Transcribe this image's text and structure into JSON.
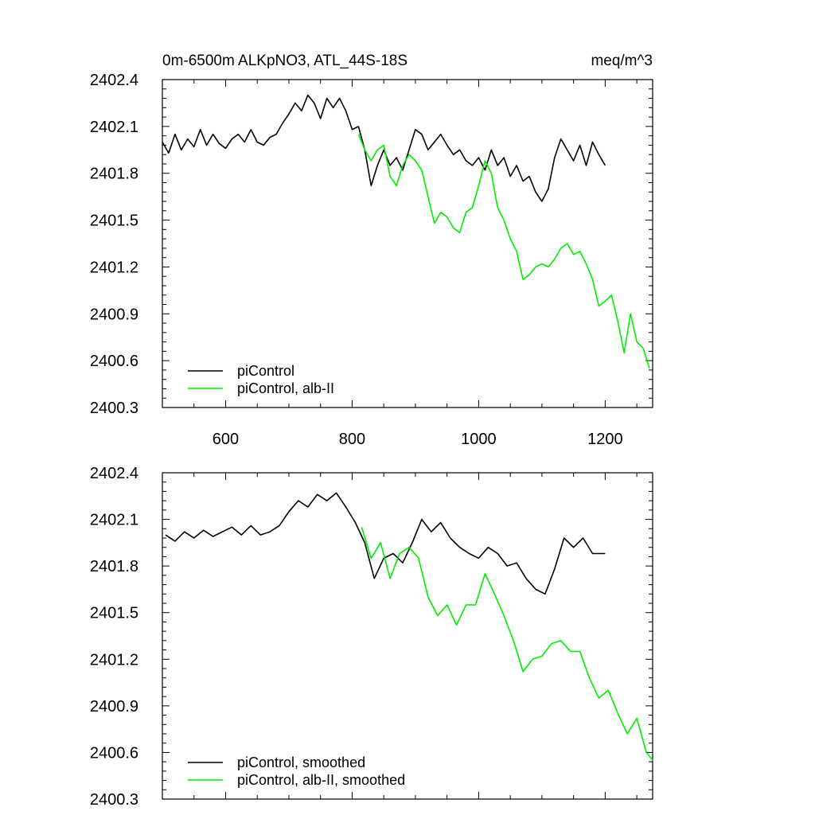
{
  "figure": {
    "title_left": "0m-6500m ALKpNO3, ATL_44S-18S",
    "title_right": "meq/m^3"
  },
  "colors": {
    "picontrol": "#000000",
    "alb_ii": "#00ee00",
    "axes": "#000000",
    "background": "#ffffff"
  },
  "chart_data": [
    {
      "type": "line",
      "xlim": [
        500,
        1275
      ],
      "ylim": [
        2400.3,
        2402.4
      ],
      "x_ticks": [
        600,
        800,
        1000,
        1200
      ],
      "x_tick_labels": [
        "600",
        "800",
        "1000",
        "1200"
      ],
      "y_ticks": [
        2400.3,
        2400.6,
        2400.9,
        2401.2,
        2401.5,
        2401.8,
        2402.1,
        2402.4
      ],
      "y_tick_labels": [
        "2400.3",
        "2400.6",
        "2400.9",
        "2401.2",
        "2401.5",
        "2401.8",
        "2402.1",
        "2402.4"
      ],
      "grid": false,
      "legend_position": "bottom-left",
      "series": [
        {
          "name": "piControl",
          "color": "#000000",
          "x": [
            500,
            510,
            520,
            530,
            540,
            550,
            560,
            570,
            580,
            590,
            600,
            610,
            620,
            630,
            640,
            650,
            660,
            670,
            680,
            690,
            700,
            710,
            720,
            730,
            740,
            750,
            760,
            770,
            780,
            790,
            800,
            810,
            820,
            830,
            840,
            850,
            860,
            870,
            880,
            890,
            900,
            910,
            920,
            930,
            940,
            950,
            960,
            970,
            980,
            990,
            1000,
            1010,
            1020,
            1030,
            1040,
            1050,
            1060,
            1070,
            1080,
            1090,
            1100,
            1110,
            1120,
            1130,
            1140,
            1150,
            1160,
            1170,
            1180,
            1190,
            1200
          ],
          "y": [
            2402.0,
            2401.93,
            2402.05,
            2401.95,
            2402.02,
            2401.97,
            2402.08,
            2401.98,
            2402.05,
            2401.99,
            2401.96,
            2402.02,
            2402.05,
            2402.0,
            2402.08,
            2402.0,
            2401.98,
            2402.03,
            2402.05,
            2402.12,
            2402.18,
            2402.25,
            2402.2,
            2402.3,
            2402.25,
            2402.15,
            2402.28,
            2402.22,
            2402.28,
            2402.2,
            2402.08,
            2402.1,
            2401.95,
            2401.72,
            2401.85,
            2401.95,
            2401.85,
            2401.9,
            2401.82,
            2401.95,
            2402.08,
            2402.05,
            2401.95,
            2402.0,
            2402.05,
            2401.98,
            2401.92,
            2401.95,
            2401.88,
            2401.85,
            2401.9,
            2401.82,
            2401.95,
            2401.85,
            2401.9,
            2401.78,
            2401.85,
            2401.75,
            2401.78,
            2401.68,
            2401.62,
            2401.7,
            2401.9,
            2402.02,
            2401.95,
            2401.88,
            2401.98,
            2401.85,
            2402.0,
            2401.92,
            2401.85
          ]
        },
        {
          "name": "piControl, alb-II",
          "color": "#00ee00",
          "x": [
            810,
            820,
            830,
            840,
            850,
            860,
            870,
            880,
            890,
            900,
            910,
            920,
            930,
            940,
            950,
            960,
            970,
            980,
            990,
            1000,
            1010,
            1020,
            1030,
            1040,
            1050,
            1060,
            1070,
            1080,
            1090,
            1100,
            1110,
            1120,
            1130,
            1140,
            1150,
            1160,
            1170,
            1180,
            1190,
            1200,
            1210,
            1220,
            1230,
            1240,
            1250,
            1260,
            1270
          ],
          "y": [
            2402.05,
            2401.95,
            2401.88,
            2401.95,
            2401.98,
            2401.78,
            2401.72,
            2401.85,
            2401.92,
            2401.88,
            2401.82,
            2401.65,
            2401.48,
            2401.55,
            2401.52,
            2401.45,
            2401.42,
            2401.55,
            2401.58,
            2401.72,
            2401.88,
            2401.8,
            2401.58,
            2401.5,
            2401.38,
            2401.3,
            2401.12,
            2401.15,
            2401.2,
            2401.22,
            2401.2,
            2401.25,
            2401.32,
            2401.35,
            2401.28,
            2401.3,
            2401.22,
            2401.12,
            2400.95,
            2400.98,
            2401.02,
            2400.85,
            2400.65,
            2400.9,
            2400.72,
            2400.68,
            2400.55
          ]
        }
      ]
    },
    {
      "type": "line",
      "xlim": [
        500,
        1275
      ],
      "ylim": [
        2400.3,
        2402.4
      ],
      "x_ticks": [
        600,
        800,
        1000,
        1200
      ],
      "y_ticks": [
        2400.3,
        2400.6,
        2400.9,
        2401.2,
        2401.5,
        2401.8,
        2402.1,
        2402.4
      ],
      "y_tick_labels": [
        "2400.3",
        "2400.6",
        "2400.9",
        "2401.2",
        "2401.5",
        "2401.8",
        "2402.1",
        "2402.4"
      ],
      "grid": false,
      "legend_position": "bottom-left",
      "series": [
        {
          "name": "piControl, smoothed",
          "color": "#000000",
          "x": [
            505,
            520,
            535,
            550,
            565,
            580,
            595,
            610,
            625,
            640,
            655,
            670,
            685,
            700,
            715,
            730,
            745,
            760,
            775,
            790,
            805,
            820,
            835,
            850,
            865,
            880,
            895,
            910,
            925,
            940,
            955,
            970,
            985,
            1000,
            1015,
            1030,
            1045,
            1060,
            1075,
            1090,
            1105,
            1120,
            1135,
            1150,
            1165,
            1180,
            1200
          ],
          "y": [
            2402.0,
            2401.96,
            2402.02,
            2401.98,
            2402.03,
            2401.99,
            2402.02,
            2402.05,
            2402.0,
            2402.06,
            2402.0,
            2402.02,
            2402.06,
            2402.15,
            2402.22,
            2402.18,
            2402.26,
            2402.22,
            2402.27,
            2402.18,
            2402.08,
            2401.95,
            2401.72,
            2401.85,
            2401.88,
            2401.82,
            2401.95,
            2402.1,
            2402.02,
            2402.08,
            2401.98,
            2401.92,
            2401.88,
            2401.85,
            2401.92,
            2401.88,
            2401.8,
            2401.82,
            2401.72,
            2401.65,
            2401.62,
            2401.78,
            2401.98,
            2401.92,
            2401.98,
            2401.88,
            2401.88
          ]
        },
        {
          "name": "piControl, alb-II, smoothed",
          "color": "#00ee00",
          "x": [
            815,
            830,
            845,
            860,
            875,
            890,
            905,
            920,
            935,
            950,
            965,
            980,
            995,
            1010,
            1025,
            1040,
            1055,
            1070,
            1085,
            1100,
            1115,
            1130,
            1145,
            1160,
            1175,
            1190,
            1205,
            1220,
            1235,
            1250,
            1265,
            1275
          ],
          "y": [
            2402.05,
            2401.85,
            2401.95,
            2401.72,
            2401.88,
            2401.92,
            2401.85,
            2401.6,
            2401.48,
            2401.55,
            2401.42,
            2401.55,
            2401.55,
            2401.75,
            2401.62,
            2401.48,
            2401.32,
            2401.12,
            2401.2,
            2401.22,
            2401.3,
            2401.32,
            2401.25,
            2401.25,
            2401.08,
            2400.95,
            2401.0,
            2400.85,
            2400.72,
            2400.82,
            2400.6,
            2400.55
          ]
        }
      ]
    }
  ]
}
